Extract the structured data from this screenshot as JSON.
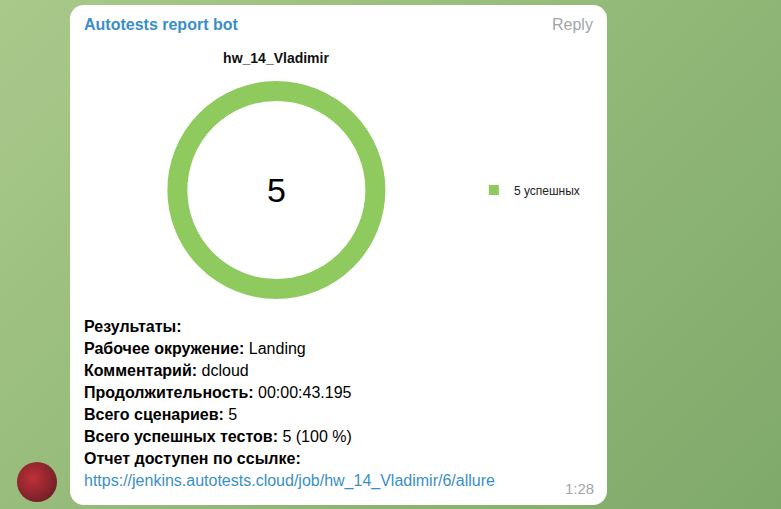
{
  "sender": "Autotests report bot",
  "reply": "Reply",
  "chart_data": {
    "type": "pie",
    "title": "hw_14_Vladimir",
    "categories": [
      "5 успешных"
    ],
    "values": [
      5
    ],
    "colors": [
      "#8fca5e"
    ],
    "center_text": "5",
    "legend": "right"
  },
  "results": {
    "heading": "Результаты:",
    "fields": [
      {
        "label": "Рабочее окружение:",
        "value": "Landing"
      },
      {
        "label": "Комментарий:",
        "value": "dcloud"
      },
      {
        "label": "Продолжительность:",
        "value": "00:00:43.195"
      },
      {
        "label": "Всего сценариев:",
        "value": "5"
      },
      {
        "label": "Всего успешных тестов:",
        "value": "5 (100 %)"
      }
    ],
    "link_label": "Отчет доступен по ссылке:",
    "link": "https://jenkins.autotests.cloud/job/hw_14_Vladimir/6/allure"
  },
  "time": "1:28"
}
